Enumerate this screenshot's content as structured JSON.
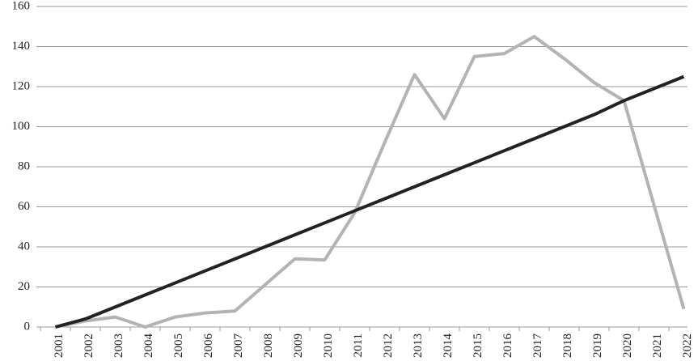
{
  "chart_data": {
    "type": "line",
    "categories": [
      "2001",
      "2002",
      "2003",
      "2004",
      "2005",
      "2006",
      "2007",
      "2008",
      "2009",
      "2010",
      "2011",
      "2012",
      "2013",
      "2014",
      "2015",
      "2016",
      "2017",
      "2018",
      "2019",
      "2020",
      "2021",
      "2022"
    ],
    "series": [
      {
        "color": "#b3b3b3",
        "values": [
          0,
          3,
          5,
          0,
          5,
          7,
          8,
          21,
          34,
          33.5,
          57,
          92,
          126,
          104,
          135,
          136.5,
          145,
          134,
          122,
          113,
          61,
          9
        ]
      },
      {
        "color": "#222222",
        "values": [
          0,
          4,
          10,
          16,
          22,
          28,
          34,
          40,
          46,
          52,
          58,
          64,
          70,
          76,
          82,
          88,
          94,
          100,
          106,
          113,
          119,
          125
        ]
      }
    ],
    "ylim": [
      0,
      160
    ],
    "yticks": [
      0,
      20,
      40,
      60,
      80,
      100,
      120,
      140,
      160
    ],
    "grid": true
  }
}
